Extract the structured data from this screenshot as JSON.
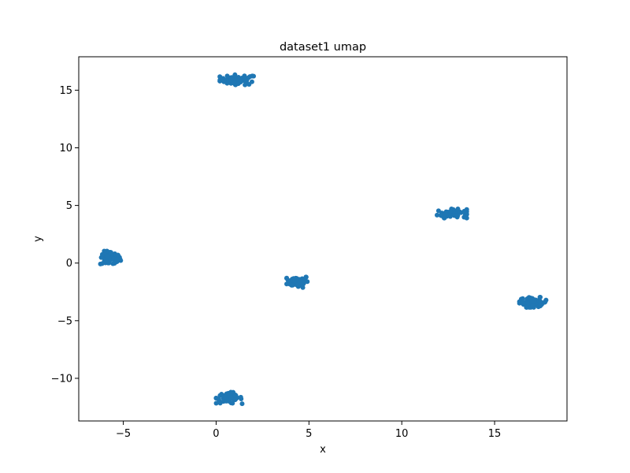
{
  "chart_data": {
    "type": "scatter",
    "title": "dataset1 umap",
    "xlabel": "x",
    "ylabel": "y",
    "xlim": [
      -7.4,
      18.9
    ],
    "ylim": [
      -13.7,
      17.9
    ],
    "xticks": [
      -5,
      0,
      5,
      10,
      15
    ],
    "xtick_labels": [
      "−5",
      "0",
      "5",
      "10",
      "15"
    ],
    "yticks": [
      -10,
      -5,
      0,
      5,
      10,
      15
    ],
    "ytick_labels": [
      "−10",
      "−5",
      "0",
      "5",
      "10",
      "15"
    ],
    "grid": false,
    "legend": "none",
    "marker_color": "#1f77b4",
    "clusters": [
      {
        "center": [
          1.2,
          15.9
        ],
        "spread": [
          0.5,
          0.22
        ],
        "count": 60
      },
      {
        "center": [
          -5.7,
          0.4
        ],
        "spread": [
          0.28,
          0.32
        ],
        "count": 60
      },
      {
        "center": [
          4.4,
          -1.6
        ],
        "spread": [
          0.3,
          0.26
        ],
        "count": 60
      },
      {
        "center": [
          12.7,
          4.3
        ],
        "spread": [
          0.4,
          0.2
        ],
        "count": 60
      },
      {
        "center": [
          17.1,
          -3.4
        ],
        "spread": [
          0.38,
          0.22
        ],
        "count": 60
      },
      {
        "center": [
          0.7,
          -11.7
        ],
        "spread": [
          0.35,
          0.25
        ],
        "count": 60
      }
    ]
  }
}
